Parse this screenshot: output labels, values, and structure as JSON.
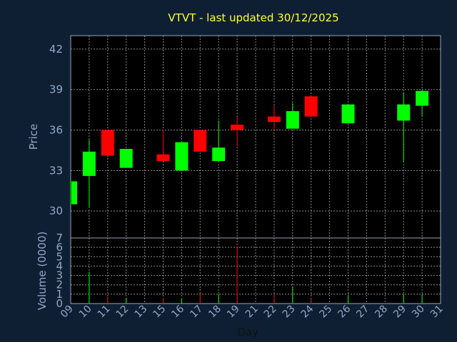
{
  "chart_data": {
    "type": "candlestick",
    "title": "VTVT - last updated 30/12/2025",
    "price_panel": {
      "ylabel": "Price",
      "yticks": [
        "30",
        "33",
        "36",
        "39",
        "42"
      ],
      "ylim": [
        28,
        43
      ]
    },
    "volume_panel": {
      "ylabel": "Volume (0000)",
      "yticks": [
        "0",
        "1",
        "2",
        "3",
        "4",
        "5",
        "6",
        "7"
      ],
      "ylim": [
        0,
        7
      ]
    },
    "xlabel": "Day",
    "xticks": [
      "09",
      "10",
      "11",
      "12",
      "13",
      "15",
      "16",
      "17",
      "18",
      "19",
      "21",
      "22",
      "23",
      "24",
      "25",
      "26",
      "27",
      "28",
      "29",
      "30",
      "31"
    ],
    "candles": [
      {
        "day": "09",
        "open": 30.5,
        "high": 32.3,
        "low": 30.5,
        "close": 32.2,
        "volume": 0.0
      },
      {
        "day": "10",
        "open": 32.6,
        "high": 35.3,
        "low": 30.3,
        "close": 34.4,
        "volume": 3.4
      },
      {
        "day": "11",
        "open": 36.0,
        "high": 36.0,
        "low": 34.1,
        "close": 34.1,
        "volume": 0.7
      },
      {
        "day": "12",
        "open": 33.2,
        "high": 34.6,
        "low": 33.2,
        "close": 34.6,
        "volume": 0.6
      },
      {
        "day": "15",
        "open": 34.2,
        "high": 36.0,
        "low": 33.7,
        "close": 33.7,
        "volume": 0.6
      },
      {
        "day": "16",
        "open": 33.0,
        "high": 35.1,
        "low": 33.0,
        "close": 35.1,
        "volume": 0.5
      },
      {
        "day": "17",
        "open": 36.0,
        "high": 36.0,
        "low": 34.4,
        "close": 34.4,
        "volume": 1.0
      },
      {
        "day": "18",
        "open": 33.7,
        "high": 36.7,
        "low": 33.7,
        "close": 34.7,
        "volume": 1.0
      },
      {
        "day": "19",
        "open": 36.4,
        "high": 37.0,
        "low": 34.8,
        "close": 36.0,
        "volume": 6.1
      },
      {
        "day": "22",
        "open": 37.0,
        "high": 37.8,
        "low": 36.0,
        "close": 36.6,
        "volume": 0.9
      },
      {
        "day": "23",
        "open": 36.1,
        "high": 38.0,
        "low": 36.1,
        "close": 37.4,
        "volume": 1.8
      },
      {
        "day": "24",
        "open": 38.5,
        "high": 38.5,
        "low": 37.0,
        "close": 37.0,
        "volume": 0.5
      },
      {
        "day": "26",
        "open": 36.5,
        "high": 37.9,
        "low": 36.5,
        "close": 37.9,
        "volume": 0.8
      },
      {
        "day": "29",
        "open": 36.7,
        "high": 38.8,
        "low": 33.6,
        "close": 37.9,
        "volume": 1.0
      },
      {
        "day": "30",
        "open": 37.8,
        "high": 38.9,
        "low": 37.0,
        "close": 38.9,
        "volume": 1.0
      }
    ],
    "colors": {
      "up": "#00ff00",
      "down": "#ff0000",
      "background": "#0f1f33",
      "plot_background": "#000000",
      "axis_text": "#8fa8c8",
      "title_text": "#ffff33"
    },
    "grid": true
  }
}
